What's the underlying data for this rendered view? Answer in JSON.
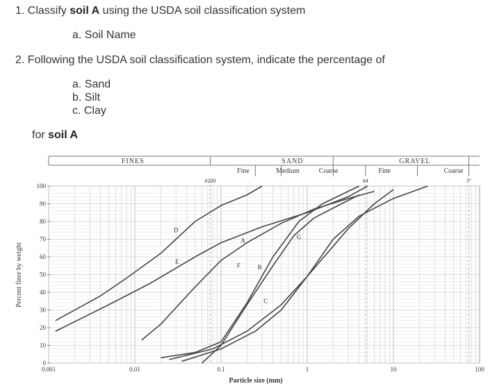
{
  "questions": {
    "q1": {
      "prefix": "1. Classify ",
      "bold": "soil A",
      "suffix": " using the USDA soil classification system"
    },
    "q1a": "a. Soil Name",
    "q2": "2. Following the USDA soil classification system, indicate the percentage of",
    "q2a": "a. Sand",
    "q2b": "b. Silt",
    "q2c": "c. Clay",
    "for_prefix": "for ",
    "for_bold": "soil A"
  },
  "chart_data": {
    "type": "line",
    "xscale": "log",
    "xlim": [
      0.001,
      100
    ],
    "ylim": [
      0,
      100
    ],
    "xlabel": "Particle size (mm)",
    "ylabel": "Percent finer by weight",
    "x_ticks": [
      "0.001",
      "0.01",
      "0.1",
      "1",
      "10",
      "100"
    ],
    "y_ticks": [
      "0",
      "10",
      "20",
      "30",
      "40",
      "50",
      "60",
      "70",
      "80",
      "90",
      "100"
    ],
    "top_headers": {
      "fines": "FINES",
      "sand": "SAND",
      "sand_fine": "Fine",
      "sand_medium": "Medium",
      "sand_coarse": "Coarse",
      "gravel": "GRAVEL",
      "gravel_fine": "Fine",
      "gravel_coarse": "Coarse",
      "sieve_200": "#200",
      "sieve_4": "#4",
      "size_3in": "3\""
    },
    "series": [
      {
        "name": "A",
        "points": [
          [
            0.012,
            13
          ],
          [
            0.02,
            22
          ],
          [
            0.05,
            43
          ],
          [
            0.1,
            58
          ],
          [
            0.2,
            68
          ],
          [
            0.5,
            79
          ],
          [
            1.2,
            87
          ],
          [
            3,
            93
          ],
          [
            6,
            97
          ]
        ]
      },
      {
        "name": "B",
        "points": [
          [
            0.06,
            0
          ],
          [
            0.1,
            10
          ],
          [
            0.2,
            33
          ],
          [
            0.4,
            55
          ],
          [
            0.7,
            72
          ],
          [
            1.2,
            82
          ],
          [
            2.5,
            90
          ],
          [
            4,
            95
          ]
        ]
      },
      {
        "name": "C",
        "points": [
          [
            0.035,
            1
          ],
          [
            0.1,
            8
          ],
          [
            0.25,
            18
          ],
          [
            0.5,
            30
          ],
          [
            1,
            49
          ],
          [
            2,
            70
          ],
          [
            4,
            83
          ],
          [
            10,
            93
          ],
          [
            25,
            100
          ]
        ]
      },
      {
        "name": "D",
        "points": [
          [
            0.0012,
            24
          ],
          [
            0.004,
            38
          ],
          [
            0.008,
            48
          ],
          [
            0.02,
            62
          ],
          [
            0.05,
            80
          ],
          [
            0.1,
            89
          ],
          [
            0.2,
            95
          ],
          [
            0.3,
            100
          ]
        ]
      },
      {
        "name": "E",
        "points": [
          [
            0.0012,
            18
          ],
          [
            0.005,
            33
          ],
          [
            0.015,
            45
          ],
          [
            0.05,
            60
          ],
          [
            0.1,
            68
          ],
          [
            0.3,
            77
          ],
          [
            1,
            85
          ],
          [
            3,
            94
          ],
          [
            5,
            100
          ]
        ]
      },
      {
        "name": "F",
        "points": [
          [
            0.02,
            3
          ],
          [
            0.05,
            6
          ],
          [
            0.1,
            12
          ],
          [
            0.2,
            34
          ],
          [
            0.4,
            60
          ],
          [
            0.8,
            80
          ],
          [
            1.5,
            90
          ],
          [
            4,
            100
          ]
        ]
      },
      {
        "name": "G",
        "points": [
          [
            0.025,
            2
          ],
          [
            0.08,
            8
          ],
          [
            0.2,
            18
          ],
          [
            0.5,
            33
          ],
          [
            1,
            49
          ],
          [
            2,
            66
          ],
          [
            3,
            76
          ],
          [
            6,
            90
          ],
          [
            10,
            98
          ]
        ]
      }
    ],
    "grid": true,
    "legend": "none"
  }
}
